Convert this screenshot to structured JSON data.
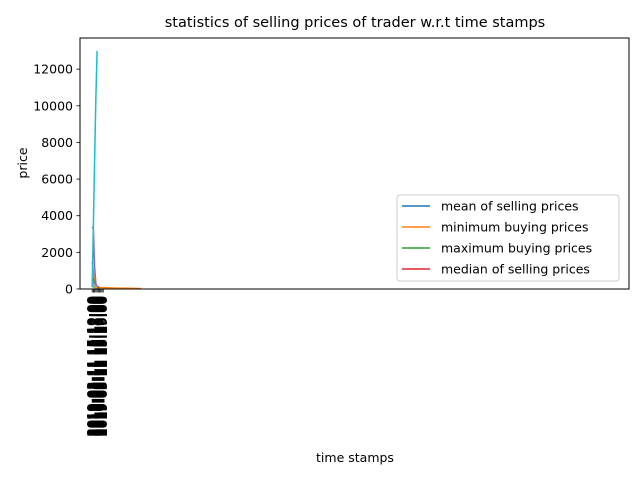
{
  "chart_data": {
    "type": "line",
    "title": "statistics of selling prices of trader w.r.t time stamps",
    "xlabel": "time stamps",
    "ylabel": "price",
    "ylim": [
      0,
      13700
    ],
    "yticks": [
      0,
      2000,
      4000,
      6000,
      8000,
      10000,
      12000
    ],
    "ytick_labels": [
      "0",
      "2000",
      "4000",
      "6000",
      "8000",
      "10000",
      "12000"
    ],
    "x_range": [
      -0.5,
      22
    ],
    "xtick_positions": [
      0,
      0.05,
      0.1,
      0.15,
      0.2,
      0.25,
      0.3,
      0.35,
      0.4,
      0.45
    ],
    "xtick_labels": [
      "2019-03-11 15:10:00",
      "2019-03-11 15:11:00",
      "2019-03-11 15:12:00",
      "2019-03-11 15:13:00",
      "2019-03-11 15:14:00",
      "2019-03-11 15:15:00",
      "2019-03-11 15:16:00",
      "2019-03-11 15:17:00",
      "2019-03-11 15:18:00",
      "2019-03-11 15:19:00"
    ],
    "grid": false,
    "legend_position": "lower-right",
    "series": [
      {
        "name": "mean of selling prices",
        "color": "#1f77b4",
        "x": [
          0,
          0.1,
          0.2,
          0.3
        ],
        "y": [
          300,
          200,
          150,
          100
        ]
      },
      {
        "name": "minimum buying prices",
        "color": "#ff7f0e",
        "x": [
          0,
          0.1,
          0.2,
          0.3,
          1,
          2
        ],
        "y": [
          1500,
          400,
          150,
          80,
          50,
          30
        ]
      },
      {
        "name": "maximum buying prices",
        "color": "#2ca02c",
        "x": [
          0,
          0.1,
          0.2,
          0.3
        ],
        "y": [
          700,
          300,
          100,
          50
        ]
      },
      {
        "name": "median of selling prices",
        "color": "#d62728",
        "x": [
          0,
          0.1,
          0.2,
          0.3
        ],
        "y": [
          600,
          200,
          100,
          60
        ]
      },
      {
        "name": "",
        "color": "#9467bd",
        "x": [
          0,
          0.05,
          0.1,
          0.15,
          0.2
        ],
        "y": [
          3400,
          3300,
          1200,
          300,
          100
        ]
      },
      {
        "name": "",
        "color": "#8c564b",
        "x": [
          0,
          0.1,
          0.2
        ],
        "y": [
          200,
          120,
          80
        ]
      },
      {
        "name": "",
        "color": "#e377c2",
        "x": [
          0,
          0.1,
          0.2
        ],
        "y": [
          500,
          200,
          80
        ]
      },
      {
        "name": "",
        "color": "#7f7f7f",
        "x": [
          0,
          0.1,
          0.2,
          0.3
        ],
        "y": [
          150,
          90,
          60,
          40
        ]
      },
      {
        "name": "",
        "color": "#bcbd22",
        "x": [
          0,
          0.1,
          0.2
        ],
        "y": [
          250,
          120,
          60
        ]
      },
      {
        "name": "",
        "color": "#17becf",
        "x": [
          0,
          0.1,
          0.15,
          0.2
        ],
        "y": [
          100,
          7000,
          10500,
          13000
        ]
      }
    ]
  }
}
